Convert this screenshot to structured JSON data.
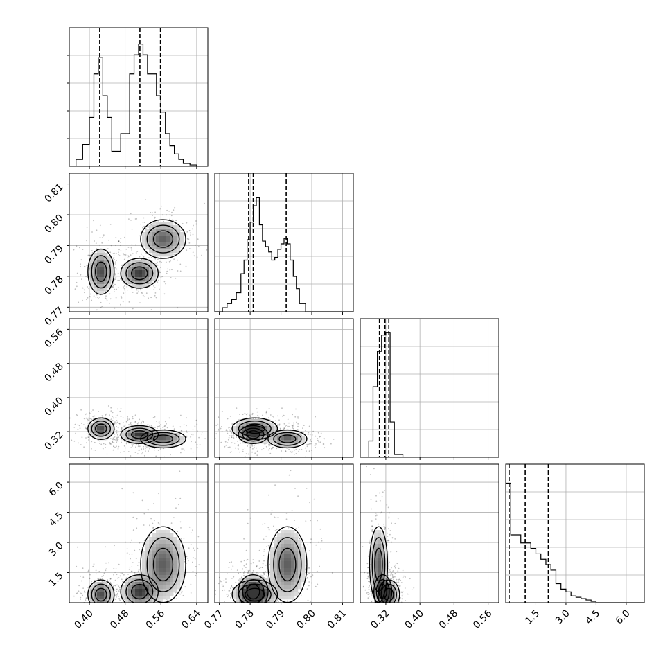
{
  "chart_data": {
    "type": "corner",
    "grid": true,
    "colors": {
      "ink": "#000000",
      "grid": "#b0b0b0",
      "density_light": "#f2f2f2",
      "density_dark": "#3a3a3a"
    },
    "parameters": [
      {
        "id": "p0",
        "range": [
          0.355,
          0.665
        ],
        "ticks": [
          "0.40",
          "0.48",
          "0.56",
          "0.64"
        ],
        "tick_values": [
          0.4,
          0.48,
          0.56,
          0.64
        ]
      },
      {
        "id": "p1",
        "range": [
          0.7685,
          0.8135
        ],
        "ticks": [
          "0.77",
          "0.78",
          "0.79",
          "0.80",
          "0.81"
        ],
        "tick_values": [
          0.77,
          0.78,
          0.79,
          0.8,
          0.81
        ]
      },
      {
        "id": "p2",
        "range": [
          0.26,
          0.585
        ],
        "ticks": [
          "0.32",
          "0.40",
          "0.48",
          "0.56"
        ],
        "tick_values": [
          0.32,
          0.4,
          0.48,
          0.56
        ]
      },
      {
        "id": "p3",
        "range": [
          0.0,
          6.9
        ],
        "ticks": [
          "1.5",
          "3.0",
          "4.5",
          "6.0"
        ],
        "tick_values": [
          1.5,
          3.0,
          4.5,
          6.0
        ]
      }
    ],
    "histograms": [
      {
        "param": "p0",
        "bin_edges": [
          0.355,
          0.37,
          0.385,
          0.4,
          0.41,
          0.42,
          0.43,
          0.44,
          0.45,
          0.46,
          0.47,
          0.48,
          0.49,
          0.5,
          0.51,
          0.52,
          0.53,
          0.54,
          0.55,
          0.56,
          0.57,
          0.58,
          0.59,
          0.6,
          0.61,
          0.625,
          0.64,
          0.655,
          0.665
        ],
        "counts": [
          0.0,
          0.05,
          0.16,
          0.36,
          0.68,
          0.8,
          0.52,
          0.36,
          0.11,
          0.11,
          0.24,
          0.24,
          0.68,
          0.82,
          0.9,
          0.82,
          0.68,
          0.68,
          0.52,
          0.4,
          0.24,
          0.15,
          0.09,
          0.05,
          0.02,
          0.01,
          0.0,
          0.0
        ],
        "quantiles": [
          0.423,
          0.513,
          0.559
        ]
      },
      {
        "param": "p1",
        "bin_edges": [
          0.7685,
          0.771,
          0.7725,
          0.774,
          0.7755,
          0.777,
          0.778,
          0.779,
          0.78,
          0.781,
          0.782,
          0.783,
          0.784,
          0.785,
          0.786,
          0.787,
          0.788,
          0.789,
          0.79,
          0.791,
          0.792,
          0.793,
          0.794,
          0.795,
          0.796,
          0.798,
          0.8135
        ],
        "counts": [
          0.0,
          0.03,
          0.06,
          0.09,
          0.14,
          0.28,
          0.38,
          0.53,
          0.66,
          0.78,
          0.84,
          0.64,
          0.52,
          0.48,
          0.44,
          0.38,
          0.4,
          0.46,
          0.5,
          0.54,
          0.5,
          0.38,
          0.26,
          0.17,
          0.06,
          0.0
        ],
        "quantiles": [
          0.7795,
          0.781,
          0.7917
        ]
      },
      {
        "param": "p2",
        "bin_edges": [
          0.26,
          0.28,
          0.29,
          0.3,
          0.31,
          0.32,
          0.33,
          0.34,
          0.36,
          0.585
        ],
        "counts": [
          0.0,
          0.12,
          0.52,
          0.78,
          0.9,
          0.92,
          0.26,
          0.02,
          0.0
        ],
        "quantiles": [
          0.305,
          0.318,
          0.327
        ]
      },
      {
        "param": "p3",
        "bin_edges": [
          0.0,
          0.25,
          0.5,
          0.75,
          1.0,
          1.25,
          1.5,
          1.75,
          2.0,
          2.25,
          2.5,
          2.75,
          3.0,
          3.25,
          3.5,
          3.75,
          4.0,
          4.25,
          4.5,
          6.9
        ],
        "counts": [
          0.88,
          0.5,
          0.5,
          0.44,
          0.44,
          0.4,
          0.36,
          0.32,
          0.28,
          0.24,
          0.14,
          0.1,
          0.08,
          0.05,
          0.04,
          0.03,
          0.02,
          0.01,
          0.0
        ],
        "quantiles": [
          0.17,
          0.97,
          2.12
        ]
      }
    ],
    "density_modes": [
      {
        "p0": 0.426,
        "p1": 0.7815,
        "p2": 0.327,
        "p3": 0.4,
        "weight": 0.9,
        "s0": 0.014,
        "s1": 0.0035,
        "s2": 0.012,
        "s3": 0.35
      },
      {
        "p0": 0.512,
        "p1": 0.781,
        "p2": 0.313,
        "p3": 0.55,
        "weight": 1.0,
        "s0": 0.02,
        "s1": 0.0023,
        "s2": 0.01,
        "s3": 0.4
      },
      {
        "p0": 0.565,
        "p1": 0.7921,
        "p2": 0.303,
        "p3": 1.9,
        "weight": 0.8,
        "s0": 0.024,
        "s1": 0.003,
        "s2": 0.01,
        "s3": 0.9
      }
    ]
  }
}
